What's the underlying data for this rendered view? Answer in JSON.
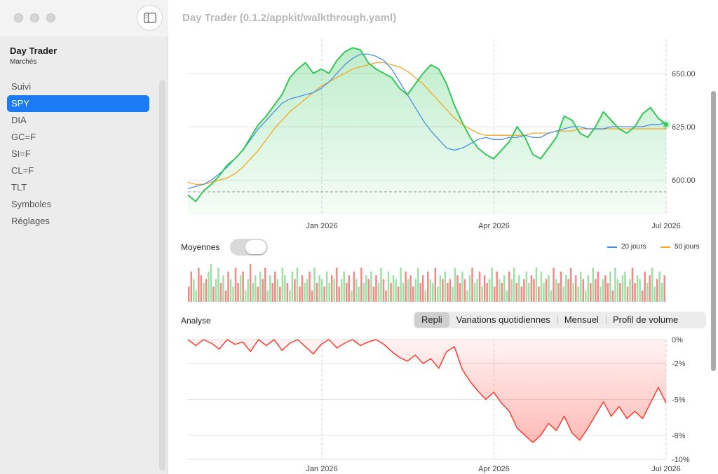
{
  "window": {
    "title": "Day Trader (0.1.2/appkit/walkthrough.yaml)"
  },
  "sidebar": {
    "app_name": "Day Trader",
    "subtitle": "Marchés",
    "items": [
      {
        "label": "Suivi"
      },
      {
        "label": "SPY",
        "selected": true
      },
      {
        "label": "DIA"
      },
      {
        "label": "GC=F"
      },
      {
        "label": "SI=F"
      },
      {
        "label": "CL=F"
      },
      {
        "label": "TLT"
      },
      {
        "label": "Symboles"
      },
      {
        "label": "Réglages"
      }
    ]
  },
  "controls": {
    "averages_label": "Moyennes",
    "averages_on": true,
    "analysis_label": "Analyse",
    "segments": [
      "Repli",
      "Variations quotidiennes",
      "Mensuel",
      "Profil de volume"
    ],
    "selected_segment": "Repli"
  },
  "legend": {
    "ma20": "20 jours",
    "ma50": "50 jours"
  },
  "colors": {
    "price": "#34c759",
    "ma20": "#4a90e2",
    "ma50": "#f5a623",
    "drawdown": "#ff3b30",
    "accent": "#1a7bf4"
  },
  "chart_data": [
    {
      "type": "line",
      "name": "price",
      "x_ticks": [
        "Jan 2026",
        "Apr 2026",
        "Jul 2026"
      ],
      "y_ticks": [
        600,
        625,
        650
      ],
      "y_tick_labels": [
        "600.00",
        "625.00",
        "650.00"
      ],
      "ylim": [
        584,
        666
      ],
      "reference_line": 594.5,
      "series": [
        {
          "values": [
            593,
            590,
            595,
            598,
            602,
            607,
            610,
            614,
            620,
            626,
            630,
            635,
            640,
            648,
            652,
            655,
            650,
            652,
            650,
            656,
            660,
            662,
            661,
            655,
            652,
            650,
            648,
            643,
            640,
            645,
            650,
            654,
            652,
            645,
            635,
            627,
            620,
            615,
            612,
            610,
            614,
            618,
            625,
            620,
            612,
            610,
            615,
            620,
            630,
            628,
            622,
            620,
            625,
            632,
            628,
            624,
            622,
            625,
            631,
            634,
            629,
            626
          ]
        },
        {
          "values": [
            596,
            597,
            598,
            600,
            603,
            606,
            610,
            614,
            619,
            624,
            628,
            632,
            636,
            638,
            639,
            640,
            641,
            643,
            646,
            650,
            654,
            657,
            659,
            659,
            658,
            656,
            652,
            646,
            640,
            634,
            628,
            623,
            619,
            615,
            614,
            615,
            617,
            619,
            620,
            619,
            619,
            620,
            620,
            621,
            620,
            620,
            622,
            623,
            624,
            625,
            625,
            624,
            624,
            624,
            625,
            625,
            625,
            625,
            625,
            626,
            626,
            627
          ]
        },
        {
          "values": [
            599,
            598,
            598,
            599,
            600,
            601,
            603,
            606,
            610,
            614,
            619,
            624,
            628,
            632,
            635,
            638,
            641,
            644,
            646,
            648,
            650,
            652,
            653,
            654,
            655,
            655,
            654,
            653,
            651,
            648,
            645,
            641,
            637,
            633,
            629,
            626,
            624,
            622,
            621,
            621,
            621,
            621,
            621,
            621,
            622,
            622,
            622,
            623,
            623,
            623,
            624,
            624,
            624,
            624,
            624,
            624,
            624,
            624,
            624,
            624,
            624,
            624
          ]
        }
      ]
    },
    {
      "type": "bar",
      "name": "volume",
      "series": [
        {
          "values": [
            0.4,
            0.8,
            0.6,
            0.3,
            0.9,
            0.7,
            0.5,
            0.6,
            0.8,
            1.0,
            0.4,
            0.6,
            0.9,
            0.5,
            0.7,
            0.3,
            0.8,
            0.6,
            0.4,
            0.9,
            0.5,
            0.7,
            0.8,
            0.3,
            0.6,
            1.0,
            0.5,
            0.7,
            0.4,
            0.8,
            0.6,
            0.9,
            0.3,
            0.7,
            0.5,
            0.8,
            0.6,
            0.4,
            0.9,
            0.7,
            0.5,
            0.3,
            0.8,
            0.6,
            0.9,
            0.4,
            0.7,
            0.5,
            0.6,
            0.8,
            0.3,
            0.9,
            0.5,
            0.7,
            0.6,
            0.4,
            0.8,
            0.5,
            0.7,
            0.6,
            0.9,
            0.4,
            0.6,
            0.8,
            0.5,
            0.7,
            0.3,
            0.8,
            0.6,
            0.4,
            0.9,
            0.5,
            0.7,
            0.6,
            0.8,
            0.4,
            0.7,
            0.5,
            0.9,
            0.6,
            0.3,
            0.8,
            0.5,
            0.7,
            0.6,
            0.4,
            0.9,
            0.5,
            0.8,
            0.6,
            0.7,
            0.4,
            0.6,
            0.9,
            0.5,
            0.7,
            0.3,
            0.8,
            0.6,
            0.5,
            0.9,
            0.4,
            0.7,
            0.6,
            0.8,
            0.5,
            0.6,
            0.4,
            0.9,
            0.7,
            0.5,
            0.8,
            0.6,
            0.3,
            0.7,
            0.9,
            0.5,
            0.6,
            0.8,
            0.4,
            0.7,
            0.5,
            0.6,
            0.9,
            0.4,
            0.8,
            0.6,
            0.5,
            0.7,
            0.3,
            0.8,
            0.6,
            0.9,
            0.5,
            0.7,
            0.4,
            0.6,
            0.8,
            0.5,
            0.7,
            0.6,
            0.9,
            0.4,
            0.8,
            0.5,
            0.6,
            0.7,
            0.3,
            0.9,
            0.6,
            0.5,
            0.8,
            0.4,
            0.7,
            0.6,
            0.9,
            0.5,
            0.7,
            0.4,
            0.8,
            0.6,
            0.3,
            0.7,
            0.5,
            0.9,
            0.6,
            0.8,
            0.4,
            0.6,
            0.7,
            0.5,
            0.8,
            0.3,
            0.9,
            0.6,
            0.5,
            0.7,
            0.8,
            0.4,
            0.6,
            0.9,
            0.5,
            0.7,
            0.6,
            0.3,
            0.8,
            0.5,
            0.7,
            0.9,
            0.4,
            0.6,
            0.8,
            0.5,
            0.7
          ]
        }
      ]
    },
    {
      "type": "area",
      "name": "drawdown",
      "x_ticks": [
        "Jan 2026",
        "Apr 2026",
        "Jul 2026"
      ],
      "y_ticks": [
        0,
        -2,
        -5,
        -8,
        -10
      ],
      "y_tick_labels": [
        "0%",
        "-2%",
        "-5%",
        "-8%",
        "-10%"
      ],
      "ylim": [
        -10,
        0
      ],
      "series": [
        {
          "values": [
            0,
            -0.5,
            0,
            -0.3,
            -0.8,
            0,
            -0.4,
            -0.2,
            -1.0,
            0,
            -0.5,
            0,
            -0.9,
            -0.3,
            0,
            -0.6,
            -1.2,
            -0.4,
            0,
            -0.7,
            -0.3,
            0,
            -0.5,
            -0.2,
            0,
            -0.4,
            -1.0,
            -1.5,
            -1.8,
            -1.3,
            -2.0,
            -1.6,
            -2.4,
            -1.0,
            -0.6,
            -2.5,
            -3.5,
            -4.3,
            -5.0,
            -4.4,
            -5.3,
            -6.0,
            -7.4,
            -8.0,
            -8.6,
            -8.0,
            -7.0,
            -7.6,
            -6.4,
            -7.8,
            -8.4,
            -7.4,
            -6.3,
            -5.2,
            -6.4,
            -5.6,
            -6.6,
            -6.0,
            -6.6,
            -5.3,
            -4.0,
            -5.3
          ]
        }
      ]
    }
  ]
}
